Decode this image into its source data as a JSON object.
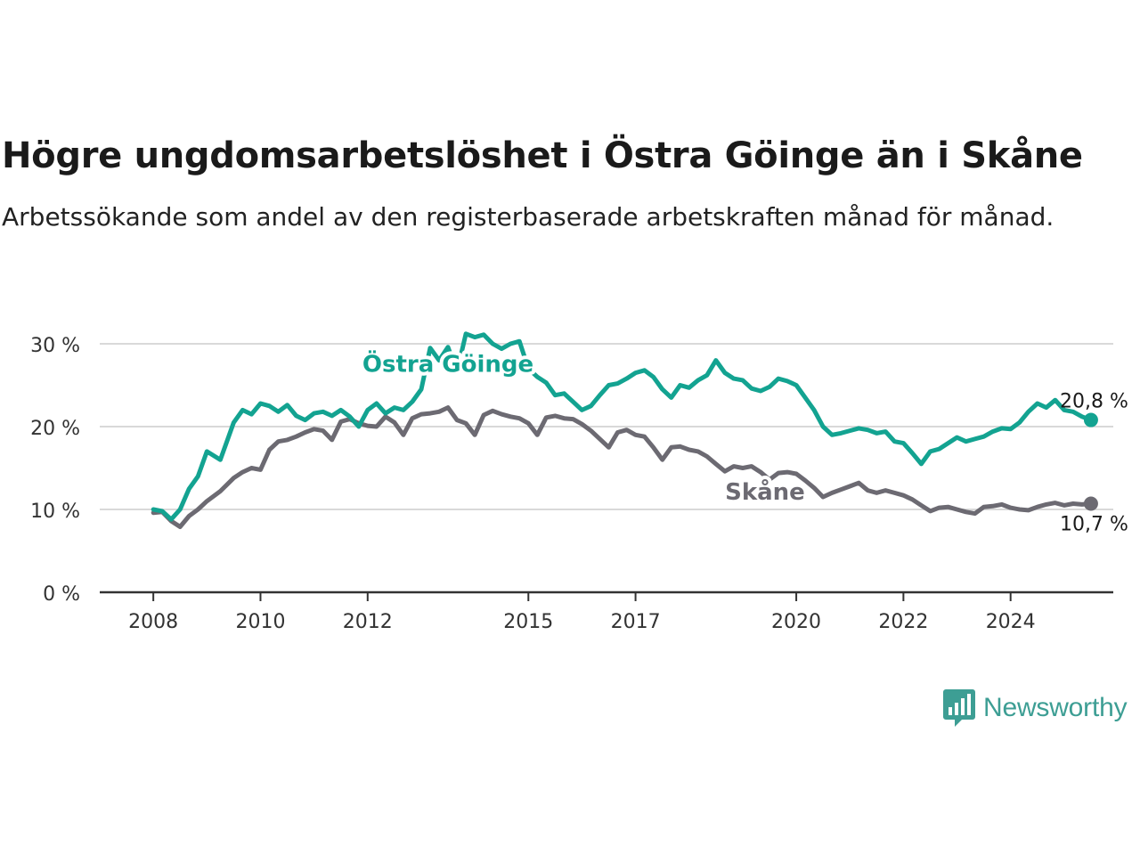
{
  "title": "Högre ungdomsarbetslöshet i Östra Göinge än i Skåne",
  "subtitle": "Arbetssökande som andel av den registerbaserade arbetskraften månad för månad.",
  "brand": {
    "name": "Newsworthy",
    "color": "#3d9e94",
    "icon": "newsworthy-logo-icon"
  },
  "colors": {
    "goinge": "#13a391",
    "skane": "#6c6a72",
    "grid": "#d9d9d9",
    "axis": "#333333"
  },
  "chart_data": {
    "type": "line",
    "title": "Högre ungdomsarbetslöshet i Östra Göinge än i Skåne",
    "ylim": [
      0,
      30
    ],
    "yticks": [
      0,
      10,
      20,
      30
    ],
    "ytick_labels": [
      "0 %",
      "10 %",
      "20 %",
      "30 %"
    ],
    "xlim": [
      "2007-01",
      "2025-12"
    ],
    "xticks": [
      "2008-01",
      "2010-01",
      "2012-01",
      "2015-01",
      "2017-01",
      "2020-01",
      "2022-01",
      "2024-01"
    ],
    "xtick_labels": [
      "2008",
      "2010",
      "2012",
      "2015",
      "2017",
      "2020",
      "2022",
      "2024"
    ],
    "grid": true,
    "series": [
      {
        "name": "Östra Göinge",
        "color": "#13a391",
        "end_label": "20,8 %",
        "points": [
          [
            "2008-01",
            10.0
          ],
          [
            "2008-03",
            9.8
          ],
          [
            "2008-05",
            8.8
          ],
          [
            "2008-07",
            10.0
          ],
          [
            "2008-09",
            12.5
          ],
          [
            "2008-11",
            14.0
          ],
          [
            "2009-01",
            17.0
          ],
          [
            "2009-04",
            16.0
          ],
          [
            "2009-07",
            20.5
          ],
          [
            "2009-09",
            22.0
          ],
          [
            "2009-11",
            21.5
          ],
          [
            "2010-01",
            22.8
          ],
          [
            "2010-03",
            22.5
          ],
          [
            "2010-05",
            21.8
          ],
          [
            "2010-07",
            22.6
          ],
          [
            "2010-09",
            21.3
          ],
          [
            "2010-11",
            20.8
          ],
          [
            "2011-01",
            21.6
          ],
          [
            "2011-03",
            21.8
          ],
          [
            "2011-05",
            21.3
          ],
          [
            "2011-07",
            22.0
          ],
          [
            "2011-09",
            21.2
          ],
          [
            "2011-11",
            20.0
          ],
          [
            "2012-01",
            22.0
          ],
          [
            "2012-03",
            22.8
          ],
          [
            "2012-05",
            21.6
          ],
          [
            "2012-07",
            22.3
          ],
          [
            "2012-09",
            22.0
          ],
          [
            "2012-11",
            23.0
          ],
          [
            "2013-01",
            24.5
          ],
          [
            "2013-03",
            29.5
          ],
          [
            "2013-05",
            28.0
          ],
          [
            "2013-07",
            29.6
          ],
          [
            "2013-09",
            26.6
          ],
          [
            "2013-11",
            31.2
          ],
          [
            "2014-01",
            30.8
          ],
          [
            "2014-03",
            31.1
          ],
          [
            "2014-05",
            30.0
          ],
          [
            "2014-07",
            29.4
          ],
          [
            "2014-09",
            30.0
          ],
          [
            "2014-11",
            30.3
          ],
          [
            "2015-01",
            27.0
          ],
          [
            "2015-03",
            26.0
          ],
          [
            "2015-05",
            25.3
          ],
          [
            "2015-07",
            23.8
          ],
          [
            "2015-09",
            24.0
          ],
          [
            "2015-11",
            23.0
          ],
          [
            "2016-01",
            22.0
          ],
          [
            "2016-03",
            22.5
          ],
          [
            "2016-05",
            23.8
          ],
          [
            "2016-07",
            25.0
          ],
          [
            "2016-09",
            25.2
          ],
          [
            "2016-11",
            25.8
          ],
          [
            "2017-01",
            26.5
          ],
          [
            "2017-03",
            26.8
          ],
          [
            "2017-05",
            26.0
          ],
          [
            "2017-07",
            24.5
          ],
          [
            "2017-09",
            23.5
          ],
          [
            "2017-11",
            25.0
          ],
          [
            "2018-01",
            24.7
          ],
          [
            "2018-03",
            25.6
          ],
          [
            "2018-05",
            26.2
          ],
          [
            "2018-07",
            28.0
          ],
          [
            "2018-09",
            26.5
          ],
          [
            "2018-11",
            25.8
          ],
          [
            "2019-01",
            25.6
          ],
          [
            "2019-03",
            24.6
          ],
          [
            "2019-05",
            24.3
          ],
          [
            "2019-07",
            24.8
          ],
          [
            "2019-09",
            25.8
          ],
          [
            "2019-11",
            25.5
          ],
          [
            "2020-01",
            25.0
          ],
          [
            "2020-03",
            23.5
          ],
          [
            "2020-05",
            22.0
          ],
          [
            "2020-07",
            20.0
          ],
          [
            "2020-09",
            19.0
          ],
          [
            "2020-11",
            19.2
          ],
          [
            "2021-01",
            19.5
          ],
          [
            "2021-03",
            19.8
          ],
          [
            "2021-05",
            19.6
          ],
          [
            "2021-07",
            19.2
          ],
          [
            "2021-09",
            19.4
          ],
          [
            "2021-11",
            18.2
          ],
          [
            "2022-01",
            18.0
          ],
          [
            "2022-03",
            16.8
          ],
          [
            "2022-05",
            15.5
          ],
          [
            "2022-07",
            17.0
          ],
          [
            "2022-09",
            17.3
          ],
          [
            "2022-11",
            18.0
          ],
          [
            "2023-01",
            18.7
          ],
          [
            "2023-03",
            18.2
          ],
          [
            "2023-05",
            18.5
          ],
          [
            "2023-07",
            18.8
          ],
          [
            "2023-09",
            19.4
          ],
          [
            "2023-11",
            19.8
          ],
          [
            "2024-01",
            19.7
          ],
          [
            "2024-03",
            20.5
          ],
          [
            "2024-05",
            21.8
          ],
          [
            "2024-07",
            22.8
          ],
          [
            "2024-09",
            22.3
          ],
          [
            "2024-11",
            23.2
          ],
          [
            "2025-01",
            22.0
          ],
          [
            "2025-03",
            21.8
          ],
          [
            "2025-05",
            21.2
          ],
          [
            "2025-07",
            20.8
          ]
        ]
      },
      {
        "name": "Skåne",
        "color": "#6c6a72",
        "end_label": "10,7 %",
        "points": [
          [
            "2008-01",
            9.6
          ],
          [
            "2008-03",
            9.7
          ],
          [
            "2008-05",
            8.6
          ],
          [
            "2008-07",
            7.9
          ],
          [
            "2008-09",
            9.2
          ],
          [
            "2008-11",
            10.0
          ],
          [
            "2009-01",
            11.0
          ],
          [
            "2009-04",
            12.2
          ],
          [
            "2009-07",
            13.8
          ],
          [
            "2009-09",
            14.5
          ],
          [
            "2009-11",
            15.0
          ],
          [
            "2010-01",
            14.8
          ],
          [
            "2010-03",
            17.2
          ],
          [
            "2010-05",
            18.2
          ],
          [
            "2010-07",
            18.4
          ],
          [
            "2010-09",
            18.8
          ],
          [
            "2010-11",
            19.3
          ],
          [
            "2011-01",
            19.7
          ],
          [
            "2011-03",
            19.5
          ],
          [
            "2011-05",
            18.4
          ],
          [
            "2011-07",
            20.6
          ],
          [
            "2011-09",
            20.9
          ],
          [
            "2011-11",
            20.4
          ],
          [
            "2012-01",
            20.1
          ],
          [
            "2012-03",
            20.0
          ],
          [
            "2012-05",
            21.2
          ],
          [
            "2012-07",
            20.5
          ],
          [
            "2012-09",
            19.0
          ],
          [
            "2012-11",
            21.0
          ],
          [
            "2013-01",
            21.5
          ],
          [
            "2013-03",
            21.6
          ],
          [
            "2013-05",
            21.8
          ],
          [
            "2013-07",
            22.3
          ],
          [
            "2013-09",
            20.8
          ],
          [
            "2013-11",
            20.4
          ],
          [
            "2014-01",
            19.0
          ],
          [
            "2014-03",
            21.4
          ],
          [
            "2014-05",
            21.9
          ],
          [
            "2014-07",
            21.5
          ],
          [
            "2014-09",
            21.2
          ],
          [
            "2014-11",
            21.0
          ],
          [
            "2015-01",
            20.4
          ],
          [
            "2015-03",
            19.0
          ],
          [
            "2015-05",
            21.1
          ],
          [
            "2015-07",
            21.3
          ],
          [
            "2015-09",
            21.0
          ],
          [
            "2015-11",
            20.9
          ],
          [
            "2016-01",
            20.3
          ],
          [
            "2016-03",
            19.5
          ],
          [
            "2016-05",
            18.5
          ],
          [
            "2016-07",
            17.5
          ],
          [
            "2016-09",
            19.3
          ],
          [
            "2016-11",
            19.6
          ],
          [
            "2017-01",
            19.0
          ],
          [
            "2017-03",
            18.8
          ],
          [
            "2017-05",
            17.5
          ],
          [
            "2017-07",
            16.0
          ],
          [
            "2017-09",
            17.5
          ],
          [
            "2017-11",
            17.6
          ],
          [
            "2018-01",
            17.2
          ],
          [
            "2018-03",
            17.0
          ],
          [
            "2018-05",
            16.4
          ],
          [
            "2018-07",
            15.5
          ],
          [
            "2018-09",
            14.6
          ],
          [
            "2018-11",
            15.2
          ],
          [
            "2019-01",
            15.0
          ],
          [
            "2019-03",
            15.2
          ],
          [
            "2019-05",
            14.5
          ],
          [
            "2019-07",
            13.6
          ],
          [
            "2019-09",
            14.4
          ],
          [
            "2019-11",
            14.5
          ],
          [
            "2020-01",
            14.3
          ],
          [
            "2020-03",
            13.5
          ],
          [
            "2020-05",
            12.6
          ],
          [
            "2020-07",
            11.5
          ],
          [
            "2020-09",
            12.0
          ],
          [
            "2020-11",
            12.4
          ],
          [
            "2021-01",
            12.8
          ],
          [
            "2021-03",
            13.2
          ],
          [
            "2021-05",
            12.3
          ],
          [
            "2021-07",
            12.0
          ],
          [
            "2021-09",
            12.3
          ],
          [
            "2021-11",
            12.0
          ],
          [
            "2022-01",
            11.7
          ],
          [
            "2022-03",
            11.2
          ],
          [
            "2022-05",
            10.5
          ],
          [
            "2022-07",
            9.8
          ],
          [
            "2022-09",
            10.2
          ],
          [
            "2022-11",
            10.3
          ],
          [
            "2023-01",
            10.0
          ],
          [
            "2023-03",
            9.7
          ],
          [
            "2023-05",
            9.5
          ],
          [
            "2023-07",
            10.3
          ],
          [
            "2023-09",
            10.4
          ],
          [
            "2023-11",
            10.6
          ],
          [
            "2024-01",
            10.2
          ],
          [
            "2024-03",
            10.0
          ],
          [
            "2024-05",
            9.9
          ],
          [
            "2024-07",
            10.3
          ],
          [
            "2024-09",
            10.6
          ],
          [
            "2024-11",
            10.8
          ],
          [
            "2025-01",
            10.5
          ],
          [
            "2025-03",
            10.7
          ],
          [
            "2025-05",
            10.6
          ],
          [
            "2025-07",
            10.7
          ]
        ]
      }
    ],
    "annotations": [
      {
        "series": "Östra Göinge",
        "text": "Östra Göinge",
        "at": [
          "2013-07",
          26.6
        ]
      },
      {
        "series": "Skåne",
        "text": "Skåne",
        "at": [
          "2019-06",
          11.2
        ]
      }
    ]
  }
}
